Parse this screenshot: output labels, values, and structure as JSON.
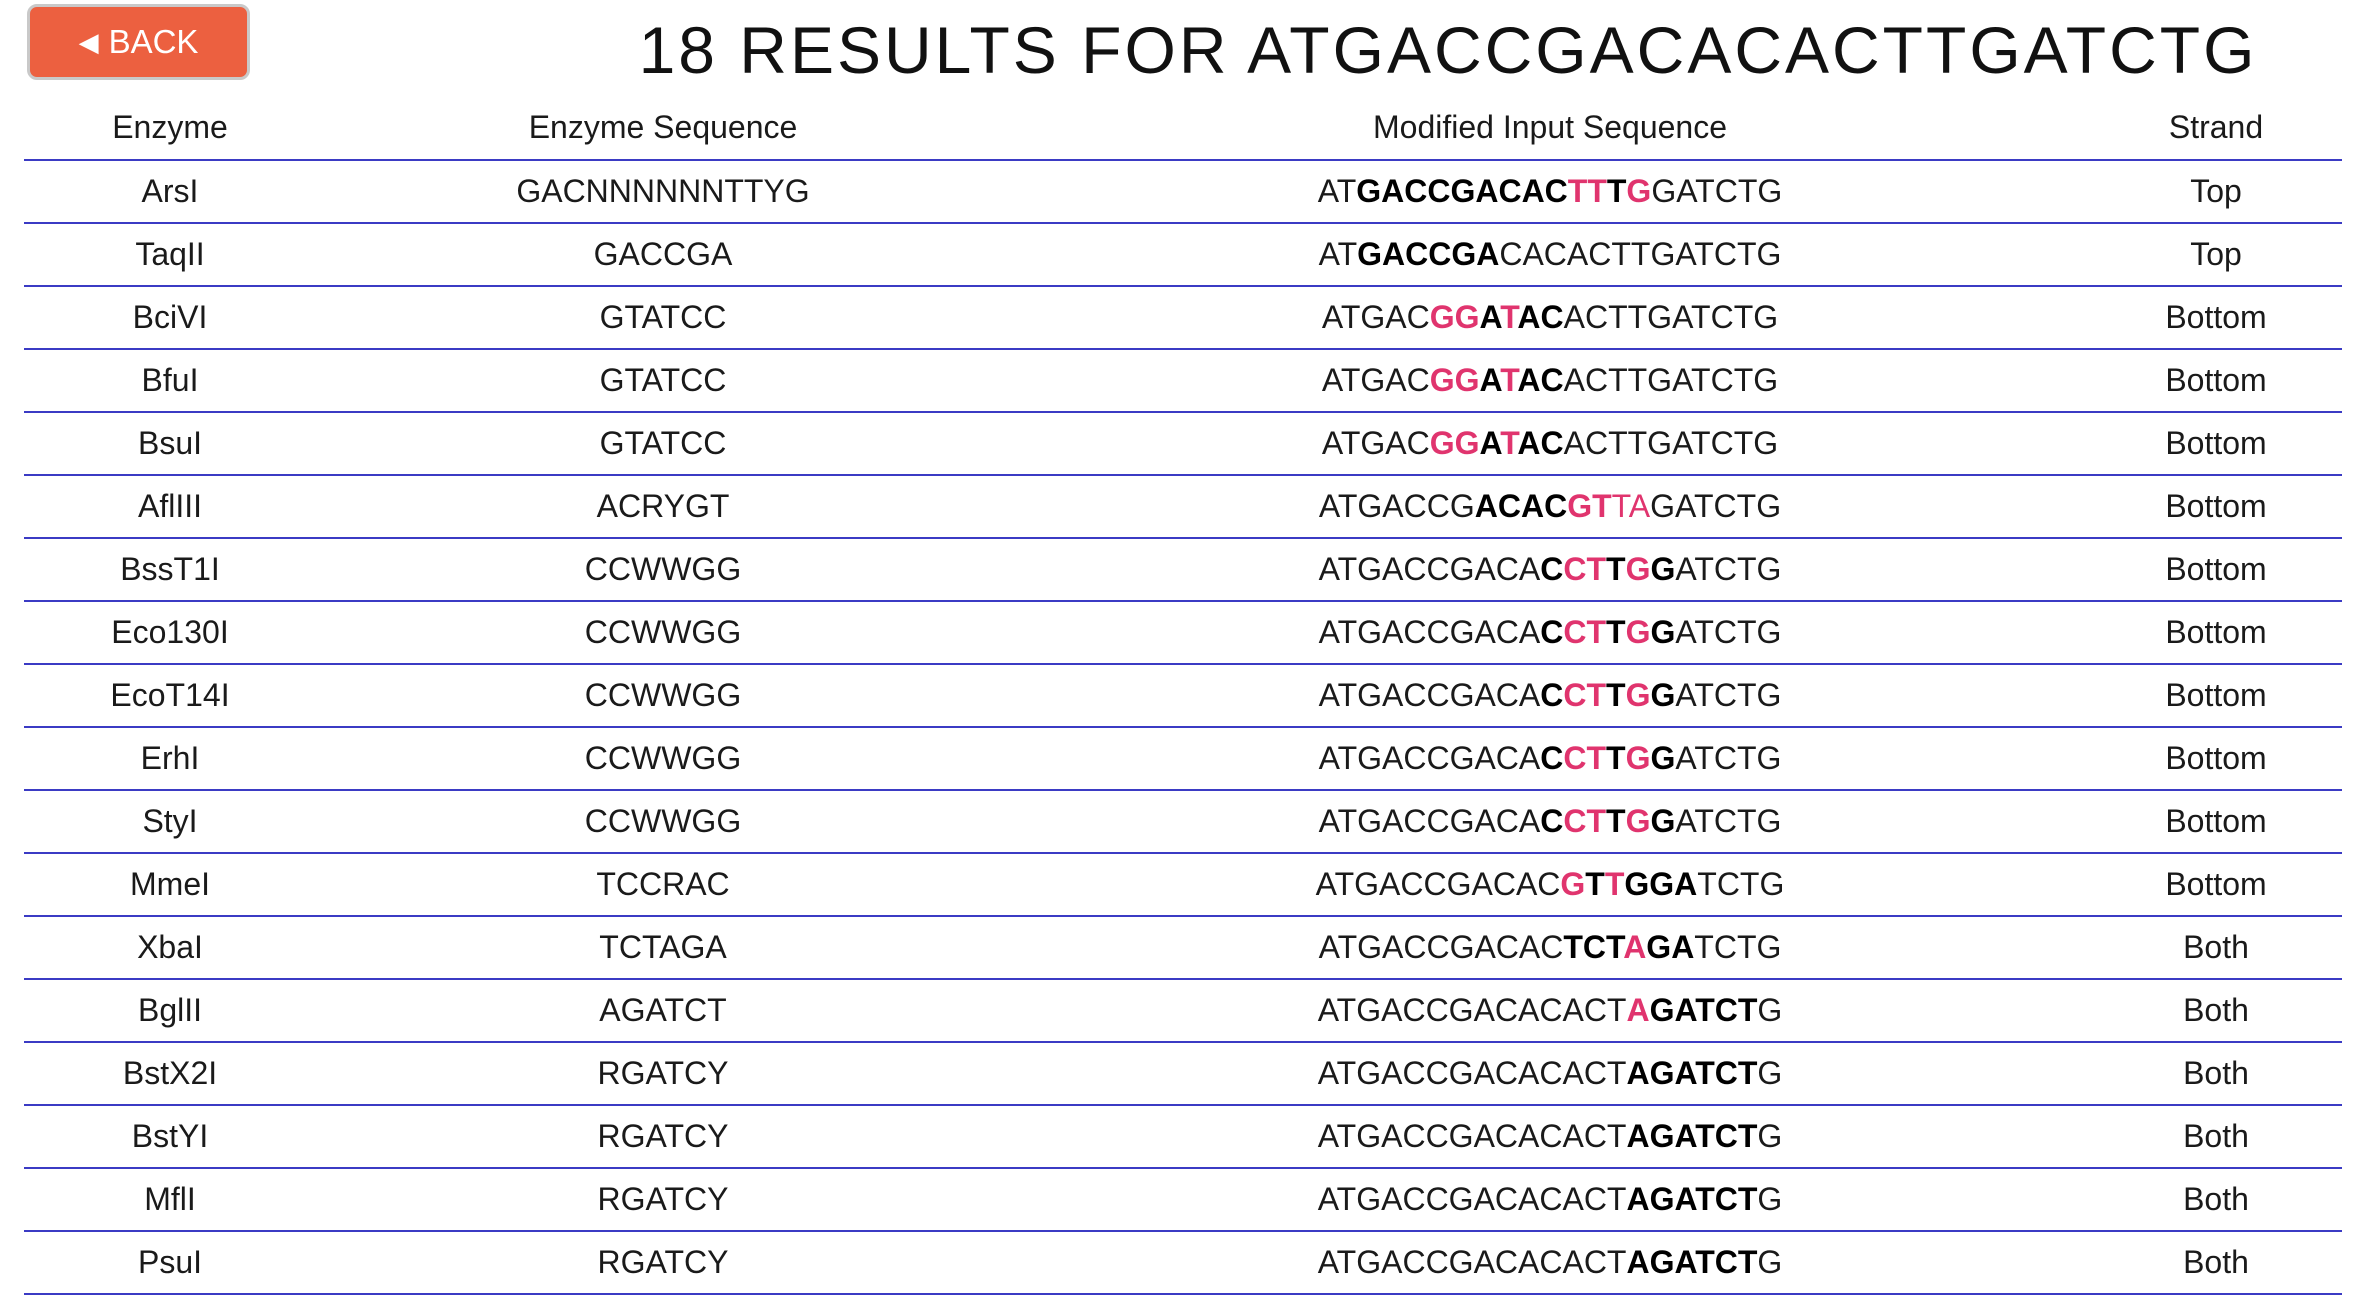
{
  "back_button": {
    "label": "BACK",
    "icon": "triangle-left-icon"
  },
  "title": "18 RESULTS FOR ATGACCGACACACTTGATCTG",
  "colors": {
    "back_button": "#ec6040",
    "row_border": "#3b3bc4",
    "mismatch": "#e0346e"
  },
  "table": {
    "headers": [
      "Enzyme",
      "Enzyme Sequence",
      "Modified Input Sequence",
      "Strand"
    ],
    "rows": [
      {
        "enzyme": "ArsI",
        "enzyme_sequence": "GACNNNNNNTTYG",
        "strand": "Top",
        "modified_sequence": [
          {
            "text": "AT",
            "style": "normal"
          },
          {
            "text": "GACCGACAC",
            "style": "bold"
          },
          {
            "text": "TT",
            "style": "mismatch"
          },
          {
            "text": "T",
            "style": "bold"
          },
          {
            "text": "G",
            "style": "mismatch"
          },
          {
            "text": "GATCTG",
            "style": "normal"
          }
        ]
      },
      {
        "enzyme": "TaqII",
        "enzyme_sequence": "GACCGA",
        "strand": "Top",
        "modified_sequence": [
          {
            "text": "AT",
            "style": "normal"
          },
          {
            "text": "GACCGA",
            "style": "bold"
          },
          {
            "text": "CACACTTGATCTG",
            "style": "normal"
          }
        ]
      },
      {
        "enzyme": "BciVI",
        "enzyme_sequence": "GTATCC",
        "strand": "Bottom",
        "modified_sequence": [
          {
            "text": "ATGAC",
            "style": "normal"
          },
          {
            "text": "GG",
            "style": "mismatch"
          },
          {
            "text": "A",
            "style": "bold"
          },
          {
            "text": "T",
            "style": "mismatch"
          },
          {
            "text": "AC",
            "style": "bold"
          },
          {
            "text": "ACTTGATCTG",
            "style": "normal"
          }
        ]
      },
      {
        "enzyme": "BfuI",
        "enzyme_sequence": "GTATCC",
        "strand": "Bottom",
        "modified_sequence": [
          {
            "text": "ATGAC",
            "style": "normal"
          },
          {
            "text": "GG",
            "style": "mismatch"
          },
          {
            "text": "A",
            "style": "bold"
          },
          {
            "text": "T",
            "style": "mismatch"
          },
          {
            "text": "AC",
            "style": "bold"
          },
          {
            "text": "ACTTGATCTG",
            "style": "normal"
          }
        ]
      },
      {
        "enzyme": "BsuI",
        "enzyme_sequence": "GTATCC",
        "strand": "Bottom",
        "modified_sequence": [
          {
            "text": "ATGAC",
            "style": "normal"
          },
          {
            "text": "GG",
            "style": "mismatch"
          },
          {
            "text": "A",
            "style": "bold"
          },
          {
            "text": "T",
            "style": "mismatch"
          },
          {
            "text": "AC",
            "style": "bold"
          },
          {
            "text": "ACTTGATCTG",
            "style": "normal"
          }
        ]
      },
      {
        "enzyme": "AflIII",
        "enzyme_sequence": "ACRYGT",
        "strand": "Bottom",
        "modified_sequence": [
          {
            "text": "ATGACCG",
            "style": "normal"
          },
          {
            "text": "ACAC",
            "style": "bold"
          },
          {
            "text": "GT",
            "style": "mismatch"
          },
          {
            "text": "TA",
            "style": "mismatch-light"
          },
          {
            "text": "GATCTG",
            "style": "normal"
          }
        ]
      },
      {
        "enzyme": "BssT1I",
        "enzyme_sequence": "CCWWGG",
        "strand": "Bottom",
        "modified_sequence": [
          {
            "text": "ATGACCGACA",
            "style": "normal"
          },
          {
            "text": "C",
            "style": "bold"
          },
          {
            "text": "CT",
            "style": "mismatch"
          },
          {
            "text": "T",
            "style": "bold"
          },
          {
            "text": "G",
            "style": "mismatch"
          },
          {
            "text": "G",
            "style": "bold"
          },
          {
            "text": "ATCTG",
            "style": "normal"
          }
        ]
      },
      {
        "enzyme": "Eco130I",
        "enzyme_sequence": "CCWWGG",
        "strand": "Bottom",
        "modified_sequence": [
          {
            "text": "ATGACCGACA",
            "style": "normal"
          },
          {
            "text": "C",
            "style": "bold"
          },
          {
            "text": "CT",
            "style": "mismatch"
          },
          {
            "text": "T",
            "style": "bold"
          },
          {
            "text": "G",
            "style": "mismatch"
          },
          {
            "text": "G",
            "style": "bold"
          },
          {
            "text": "ATCTG",
            "style": "normal"
          }
        ]
      },
      {
        "enzyme": "EcoT14I",
        "enzyme_sequence": "CCWWGG",
        "strand": "Bottom",
        "modified_sequence": [
          {
            "text": "ATGACCGACA",
            "style": "normal"
          },
          {
            "text": "C",
            "style": "bold"
          },
          {
            "text": "CT",
            "style": "mismatch"
          },
          {
            "text": "T",
            "style": "bold"
          },
          {
            "text": "G",
            "style": "mismatch"
          },
          {
            "text": "G",
            "style": "bold"
          },
          {
            "text": "ATCTG",
            "style": "normal"
          }
        ]
      },
      {
        "enzyme": "ErhI",
        "enzyme_sequence": "CCWWGG",
        "strand": "Bottom",
        "modified_sequence": [
          {
            "text": "ATGACCGACA",
            "style": "normal"
          },
          {
            "text": "C",
            "style": "bold"
          },
          {
            "text": "CT",
            "style": "mismatch"
          },
          {
            "text": "T",
            "style": "bold"
          },
          {
            "text": "G",
            "style": "mismatch"
          },
          {
            "text": "G",
            "style": "bold"
          },
          {
            "text": "ATCTG",
            "style": "normal"
          }
        ]
      },
      {
        "enzyme": "StyI",
        "enzyme_sequence": "CCWWGG",
        "strand": "Bottom",
        "modified_sequence": [
          {
            "text": "ATGACCGACA",
            "style": "normal"
          },
          {
            "text": "C",
            "style": "bold"
          },
          {
            "text": "CT",
            "style": "mismatch"
          },
          {
            "text": "T",
            "style": "bold"
          },
          {
            "text": "G",
            "style": "mismatch"
          },
          {
            "text": "G",
            "style": "bold"
          },
          {
            "text": "ATCTG",
            "style": "normal"
          }
        ]
      },
      {
        "enzyme": "MmeI",
        "enzyme_sequence": "TCCRAC",
        "strand": "Bottom",
        "modified_sequence": [
          {
            "text": "ATGACCGACAC",
            "style": "normal"
          },
          {
            "text": "G",
            "style": "mismatch"
          },
          {
            "text": "T",
            "style": "bold"
          },
          {
            "text": "T",
            "style": "mismatch"
          },
          {
            "text": "GGA",
            "style": "bold"
          },
          {
            "text": "TCTG",
            "style": "normal"
          }
        ]
      },
      {
        "enzyme": "XbaI",
        "enzyme_sequence": "TCTAGA",
        "strand": "Both",
        "modified_sequence": [
          {
            "text": "ATGACCGACAC",
            "style": "normal"
          },
          {
            "text": "TCT",
            "style": "bold"
          },
          {
            "text": "A",
            "style": "mismatch"
          },
          {
            "text": "GA",
            "style": "bold"
          },
          {
            "text": "TCTG",
            "style": "normal"
          }
        ]
      },
      {
        "enzyme": "BglII",
        "enzyme_sequence": "AGATCT",
        "strand": "Both",
        "modified_sequence": [
          {
            "text": "ATGACCGACACACT",
            "style": "normal"
          },
          {
            "text": "A",
            "style": "mismatch"
          },
          {
            "text": "GATCT",
            "style": "bold"
          },
          {
            "text": "G",
            "style": "normal"
          }
        ]
      },
      {
        "enzyme": "BstX2I",
        "enzyme_sequence": "RGATCY",
        "strand": "Both",
        "modified_sequence": [
          {
            "text": "ATGACCGACACACT",
            "style": "normal"
          },
          {
            "text": "AGATCT",
            "style": "bold"
          },
          {
            "text": "G",
            "style": "normal"
          }
        ]
      },
      {
        "enzyme": "BstYI",
        "enzyme_sequence": "RGATCY",
        "strand": "Both",
        "modified_sequence": [
          {
            "text": "ATGACCGACACACT",
            "style": "normal"
          },
          {
            "text": "AGATCT",
            "style": "bold"
          },
          {
            "text": "G",
            "style": "normal"
          }
        ]
      },
      {
        "enzyme": "MflI",
        "enzyme_sequence": "RGATCY",
        "strand": "Both",
        "modified_sequence": [
          {
            "text": "ATGACCGACACACT",
            "style": "normal"
          },
          {
            "text": "AGATCT",
            "style": "bold"
          },
          {
            "text": "G",
            "style": "normal"
          }
        ]
      },
      {
        "enzyme": "PsuI",
        "enzyme_sequence": "RGATCY",
        "strand": "Both",
        "modified_sequence": [
          {
            "text": "ATGACCGACACACT",
            "style": "normal"
          },
          {
            "text": "AGATCT",
            "style": "bold"
          },
          {
            "text": "G",
            "style": "normal"
          }
        ]
      }
    ]
  }
}
